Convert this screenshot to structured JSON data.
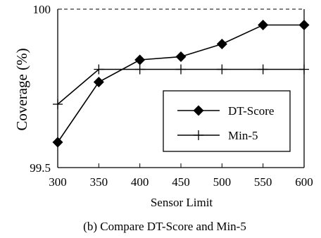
{
  "chart_data": {
    "type": "line",
    "title": "",
    "xlabel": "Sensor Limit",
    "ylabel": "Coverage (%)",
    "caption": "(b) Compare DT-Score and Min-5",
    "x": [
      300,
      350,
      400,
      450,
      500,
      550,
      600
    ],
    "xlim": [
      300,
      600
    ],
    "ylim": [
      99.5,
      100
    ],
    "x_ticks": [
      "300",
      "350",
      "400",
      "450",
      "500",
      "550",
      "600"
    ],
    "y_ticks": [
      "99.5",
      "100"
    ],
    "grid": false,
    "top_border": "dashed",
    "legend_position": "right",
    "series": [
      {
        "name": "DT-Score",
        "marker": "diamond",
        "values": [
          99.58,
          99.77,
          99.84,
          99.85,
          99.89,
          99.95,
          99.95
        ]
      },
      {
        "name": "Min-5",
        "marker": "plus",
        "values": [
          99.7,
          99.81,
          99.81,
          99.81,
          99.81,
          99.81,
          99.81
        ]
      }
    ],
    "colors": {
      "line": "#000000",
      "background": "#ffffff"
    }
  }
}
